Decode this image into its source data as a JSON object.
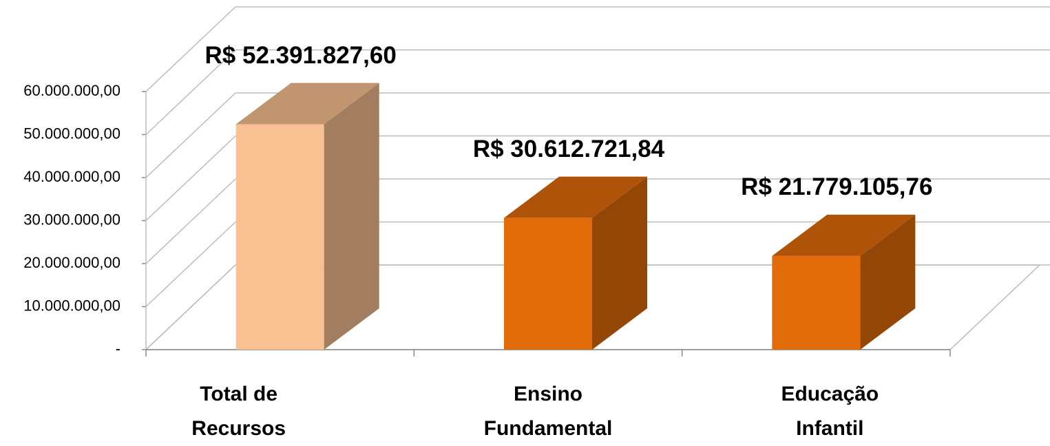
{
  "chart_data": {
    "type": "bar3d",
    "categories": [
      "Total de Recursos",
      "Ensino Fundamental",
      "Educação Infantil"
    ],
    "values": [
      52391827.6,
      30612721.84,
      21779105.76
    ],
    "value_labels": [
      "R$ 52.391.827,60",
      "R$ 30.612.721,84",
      "R$ 21.779.105,76"
    ],
    "colors": [
      "#f9c192",
      "#e36c0a",
      "#e36c0a"
    ],
    "ylim": [
      0,
      60000000
    ],
    "yticks": [
      {
        "value": 0,
        "label": "-"
      },
      {
        "value": 10000000,
        "label": "10.000.000,00"
      },
      {
        "value": 20000000,
        "label": "20.000.000,00"
      },
      {
        "value": 30000000,
        "label": "30.000.000,00"
      },
      {
        "value": 40000000,
        "label": "40.000.000,00"
      },
      {
        "value": 50000000,
        "label": "50.000.000,00"
      },
      {
        "value": 60000000,
        "label": "60.000.000,00"
      }
    ],
    "grid": true
  }
}
